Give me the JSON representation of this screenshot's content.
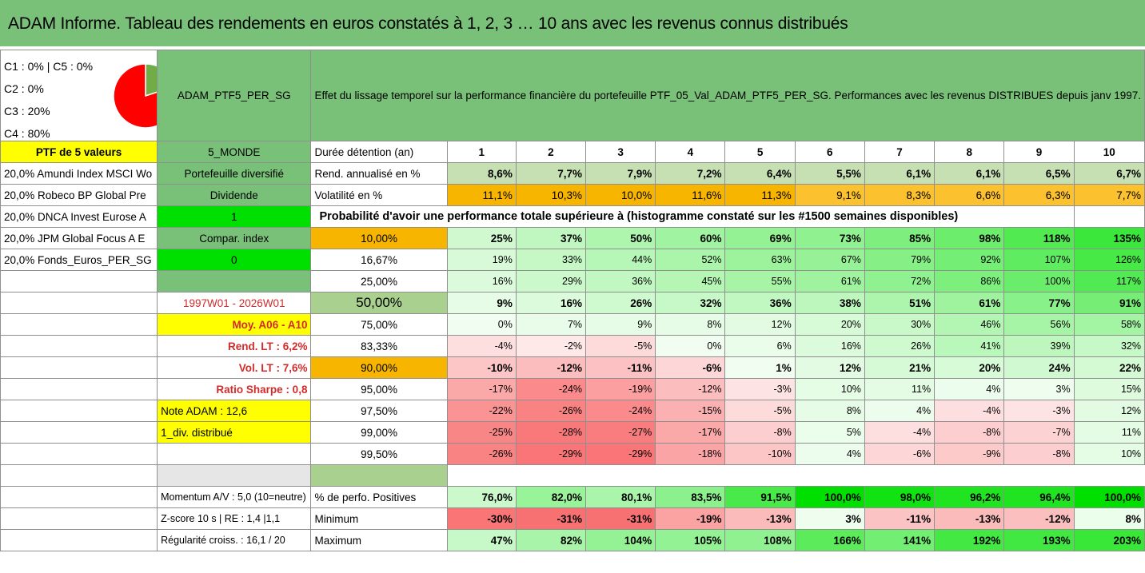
{
  "title": "ADAM Informe. Tableau des rendements en euros constatés à 1, 2, 3 … 10 ans avec les revenus connus distribués",
  "legend": {
    "lines": [
      "C1 : 0% | C5 : 0%",
      "C2 : 0%",
      "C3 : 20%",
      "C4 : 80%"
    ],
    "pie": {
      "slices": [
        {
          "label": "C4",
          "value": 80,
          "color": "#ff0000"
        },
        {
          "label": "C3",
          "value": 20,
          "color": "#70ad47"
        }
      ]
    }
  },
  "portfolio_name": "ADAM_PTF5_PER_SG",
  "description": "Effet du lissage temporel sur la performance financière du portefeuille PTF_05_Val_ADAM_PTF5_PER_SG. Performances avec les revenus DISTRIBUES depuis janv 1997.",
  "left": {
    "ptf_label": "PTF de 5 valeurs",
    "holdings": [
      "20,0% Amundi Index MSCI Wo",
      "20,0% Robeco BP Global Pre",
      "20,0% DNCA Invest Eurose A",
      "20,0% JPM Global Focus A E",
      "20,0% Fonds_Euros_PER_SG"
    ]
  },
  "middle": {
    "zone": "5_MONDE",
    "type": "Portefeuille diversifié",
    "dividend_label": "Dividende",
    "dividend_value": "1",
    "compar_label": "Compar. index",
    "compar_value": "0",
    "period": "1997W01 - 2026W01",
    "moy": "Moy. A06 - A10",
    "rend_lt": "Rend. LT : 6,2%",
    "vol_lt": "Vol. LT : 7,6%",
    "sharpe": "Ratio Sharpe : 0,8",
    "note": "Note ADAM : 12,6",
    "div": "1_div. distribué",
    "momentum": "Momentum A/V : 5,0 (10=neutre)",
    "zscore": "Z-score 10 s | RE : 1,4 |1,1",
    "regularite": "Régularité croiss. : 16,1 / 20"
  },
  "table": {
    "duration_label": "Durée détention (an)",
    "years": [
      "1",
      "2",
      "3",
      "4",
      "5",
      "6",
      "7",
      "8",
      "9",
      "10"
    ],
    "rend_label": "Rend. annualisé en %",
    "rend": [
      "8,6%",
      "7,7%",
      "7,9%",
      "7,2%",
      "6,4%",
      "5,5%",
      "6,1%",
      "6,1%",
      "6,5%",
      "6,7%"
    ],
    "vol_label": "Volatilité en %",
    "vol": [
      "11,1%",
      "10,3%",
      "10,0%",
      "11,6%",
      "11,3%",
      "9,1%",
      "8,3%",
      "6,6%",
      "6,3%",
      "7,7%"
    ],
    "prob_label": "Probabilité d'avoir une performance totale supérieure à (histogramme constaté sur les #1500 semaines disponibles)",
    "quantiles": [
      {
        "label": "10,00%",
        "values": [
          "25%",
          "37%",
          "50%",
          "60%",
          "69%",
          "73%",
          "85%",
          "98%",
          "118%",
          "135%"
        ]
      },
      {
        "label": "16,67%",
        "values": [
          "19%",
          "33%",
          "44%",
          "52%",
          "63%",
          "67%",
          "79%",
          "92%",
          "107%",
          "126%"
        ]
      },
      {
        "label": "25,00%",
        "values": [
          "16%",
          "29%",
          "36%",
          "45%",
          "55%",
          "61%",
          "72%",
          "86%",
          "100%",
          "117%"
        ]
      },
      {
        "label": "50,00%",
        "values": [
          "9%",
          "16%",
          "26%",
          "32%",
          "36%",
          "38%",
          "51%",
          "61%",
          "77%",
          "91%"
        ]
      },
      {
        "label": "75,00%",
        "values": [
          "0%",
          "7%",
          "9%",
          "8%",
          "12%",
          "20%",
          "30%",
          "46%",
          "56%",
          "58%"
        ]
      },
      {
        "label": "83,33%",
        "values": [
          "-4%",
          "-2%",
          "-5%",
          "0%",
          "6%",
          "16%",
          "26%",
          "41%",
          "39%",
          "32%"
        ]
      },
      {
        "label": "90,00%",
        "values": [
          "-10%",
          "-12%",
          "-11%",
          "-6%",
          "1%",
          "12%",
          "21%",
          "20%",
          "24%",
          "22%"
        ]
      },
      {
        "label": "95,00%",
        "values": [
          "-17%",
          "-24%",
          "-19%",
          "-12%",
          "-3%",
          "10%",
          "11%",
          "4%",
          "3%",
          "15%"
        ]
      },
      {
        "label": "97,50%",
        "values": [
          "-22%",
          "-26%",
          "-24%",
          "-15%",
          "-5%",
          "8%",
          "4%",
          "-4%",
          "-3%",
          "12%"
        ]
      },
      {
        "label": "99,00%",
        "values": [
          "-25%",
          "-28%",
          "-27%",
          "-17%",
          "-8%",
          "5%",
          "-4%",
          "-8%",
          "-7%",
          "11%"
        ]
      },
      {
        "label": "99,50%",
        "values": [
          "-26%",
          "-29%",
          "-29%",
          "-18%",
          "-10%",
          "4%",
          "-6%",
          "-9%",
          "-8%",
          "10%"
        ]
      }
    ],
    "pos_label": "% de perfo. Positives",
    "pos": [
      "76,0%",
      "82,0%",
      "80,1%",
      "83,5%",
      "91,5%",
      "100,0%",
      "98,0%",
      "96,2%",
      "96,4%",
      "100,0%"
    ],
    "min_label": "Minimum",
    "min": [
      "-30%",
      "-31%",
      "-31%",
      "-19%",
      "-13%",
      "3%",
      "-11%",
      "-13%",
      "-12%",
      "8%"
    ],
    "max_label": "Maximum",
    "max": [
      "47%",
      "82%",
      "104%",
      "105%",
      "108%",
      "166%",
      "141%",
      "192%",
      "193%",
      "203%"
    ]
  },
  "colors": {
    "title_bg": "#79c179",
    "header_green": "#79c179",
    "yellow": "#ffff00",
    "orange": "#f7b500",
    "positive_max": "#00e000",
    "negative_max": "#f8696b"
  }
}
